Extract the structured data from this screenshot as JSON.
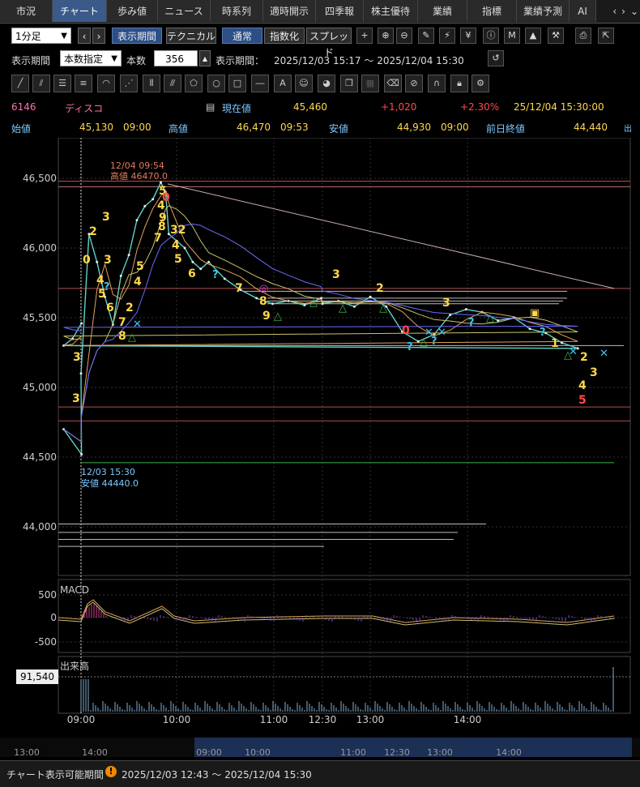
{
  "tabs": [
    "市況",
    "チャート",
    "歩み値",
    "ニュース",
    "時系列",
    "適時開示",
    "四季報",
    "株主優待",
    "業績",
    "指標",
    "業績予測",
    "AI"
  ],
  "toolbar": {
    "interval": "1分足",
    "period_btn": "表示期間",
    "technical_btn": "テクニカル",
    "normal_btn": "通常",
    "index_btn": "指数化",
    "spread_btn": "スプレッド"
  },
  "period": {
    "label": "表示期間",
    "mode": "本数指定",
    "count_label": "本数",
    "count": "356",
    "range_label": "表示期間：",
    "range": "2025/12/03 15:17 〜 2025/12/04 15:30"
  },
  "quote": {
    "code": "6146",
    "name": "ディスコ",
    "current_label": "現在値",
    "current": "45,460",
    "change": "+1,020",
    "change_pct": "+2.30%",
    "datetime": "25/12/04  15:30:00",
    "open_label": "始値",
    "open": "45,130",
    "open_time": "09:00",
    "high_label": "高値",
    "high": "46,470",
    "high_time": "09:53",
    "low_label": "安値",
    "low": "44,930",
    "low_time": "09:00",
    "prev_label": "前日終値",
    "prev": "44,440",
    "more": "出"
  },
  "chart_data": {
    "type": "line",
    "title": "",
    "y_ticks": [
      "46,500",
      "46,000",
      "45,500",
      "45,000",
      "44,500",
      "44,000"
    ],
    "x_ticks": [
      "09:00",
      "10:00",
      "11:00",
      "12:30",
      "13:00",
      "14:00"
    ],
    "ylim": [
      43700,
      46800
    ],
    "annotations": {
      "high_date": "12/04 09:54",
      "high_text": "高値 46470.0",
      "low_date": "12/03 15:30",
      "low_text": "安値 44440.0"
    },
    "series": [
      {
        "name": "price",
        "x": [
          "15:20",
          "15:30",
          "09:00",
          "09:05",
          "09:10",
          "09:15",
          "09:20",
          "09:25",
          "09:30",
          "09:35",
          "09:40",
          "09:45",
          "09:50",
          "09:53",
          "09:55",
          "10:00",
          "10:05",
          "10:10",
          "10:15",
          "10:20",
          "10:30",
          "10:40",
          "10:50",
          "11:00",
          "11:10",
          "11:20",
          "11:30",
          "12:30",
          "12:40",
          "12:50",
          "13:00",
          "13:10",
          "13:20",
          "13:30",
          "13:40",
          "13:50",
          "14:00",
          "14:10",
          "14:20",
          "14:30",
          "14:40",
          "14:50",
          "15:00",
          "15:10",
          "15:20",
          "15:25",
          "15:30"
        ],
        "values": [
          44700,
          44520,
          45100,
          46100,
          45900,
          45650,
          45450,
          45800,
          45950,
          46200,
          46300,
          46350,
          46470,
          46400,
          46100,
          46050,
          46000,
          45900,
          45850,
          45900,
          45780,
          45700,
          45640,
          45600,
          45620,
          45590,
          45640,
          45600,
          45620,
          45580,
          45650,
          45580,
          45400,
          45330,
          45380,
          45520,
          45560,
          45540,
          45480,
          45500,
          45420,
          45390,
          45320,
          45280,
          45300,
          45350,
          45460
        ]
      }
    ],
    "macd": {
      "label": "MACD",
      "ticks": [
        "500",
        "0",
        "-500"
      ]
    },
    "volume": {
      "label": "出来高",
      "value": "91,540"
    },
    "overview_ticks": [
      "13:00",
      "14:00",
      "09:00",
      "10:00",
      "11:00",
      "12:30",
      "13:00",
      "14:00"
    ]
  },
  "status": {
    "label": "チャート表示可能期間",
    "range": "2025/12/03 12:43 〜 2025/12/04 15:30"
  }
}
